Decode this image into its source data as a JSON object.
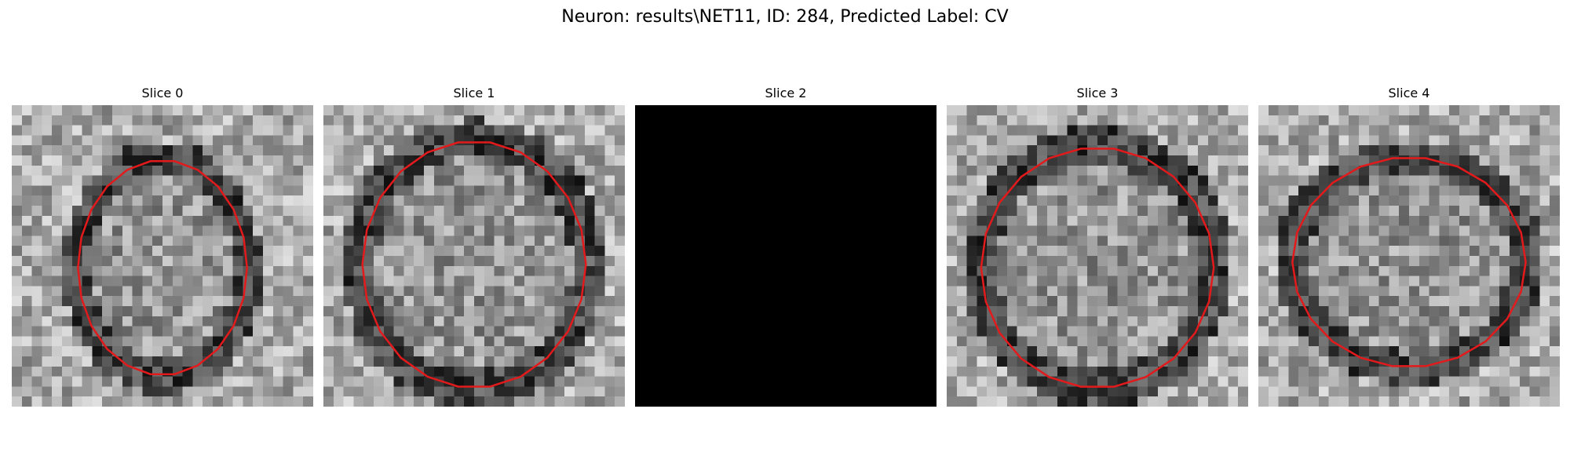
{
  "figure": {
    "title": "Neuron: results\\NET11, ID: 284, Predicted Label: CV"
  },
  "slices": [
    {
      "label": "Slice 0",
      "blank": false,
      "contour_color": "#e31a1c"
    },
    {
      "label": "Slice 1",
      "blank": false,
      "contour_color": "#e31a1c"
    },
    {
      "label": "Slice 2",
      "blank": true,
      "contour_color": "#e31a1c"
    },
    {
      "label": "Slice 3",
      "blank": false,
      "contour_color": "#e31a1c"
    },
    {
      "label": "Slice 4",
      "blank": false,
      "contour_color": "#e31a1c"
    }
  ]
}
